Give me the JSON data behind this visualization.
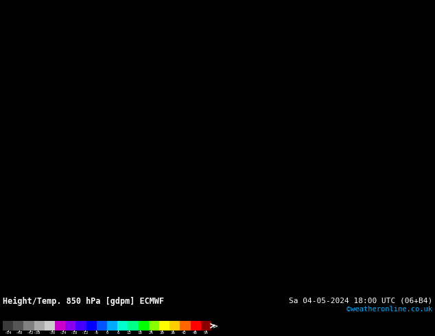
{
  "title": "Height/Temp. 850 hPa [gdpm] ECMWF",
  "date_label": "Sa 04-05-2024 18:00 UTC (06+B4)",
  "credit": "©weatheronline.co.uk",
  "bg_color": "#f5c800",
  "digit_color": "#000000",
  "figsize": [
    6.34,
    4.9
  ],
  "dpi": 100,
  "bottom_bar_bg": "#000000",
  "colorbar_colors": [
    "#3a3a3a",
    "#555555",
    "#808080",
    "#aaaaaa",
    "#cccccc",
    "#cc00cc",
    "#8800ee",
    "#4400ff",
    "#0000ff",
    "#0055ff",
    "#00aaff",
    "#00ffcc",
    "#00ff88",
    "#00ff00",
    "#88ff00",
    "#ffff00",
    "#ffcc00",
    "#ff6600",
    "#ff0000",
    "#880000"
  ],
  "tick_labels": [
    "-54",
    "-48",
    "-42",
    "-38",
    "-30",
    "-24",
    "-18",
    "-12",
    "-6",
    "0",
    "6",
    "12",
    "18",
    "24",
    "30",
    "36",
    "42",
    "48",
    "54"
  ],
  "tick_vals": [
    -54,
    -48,
    -42,
    -38,
    -30,
    -24,
    -18,
    -12,
    -6,
    0,
    6,
    12,
    18,
    24,
    30,
    36,
    42,
    48,
    54
  ]
}
